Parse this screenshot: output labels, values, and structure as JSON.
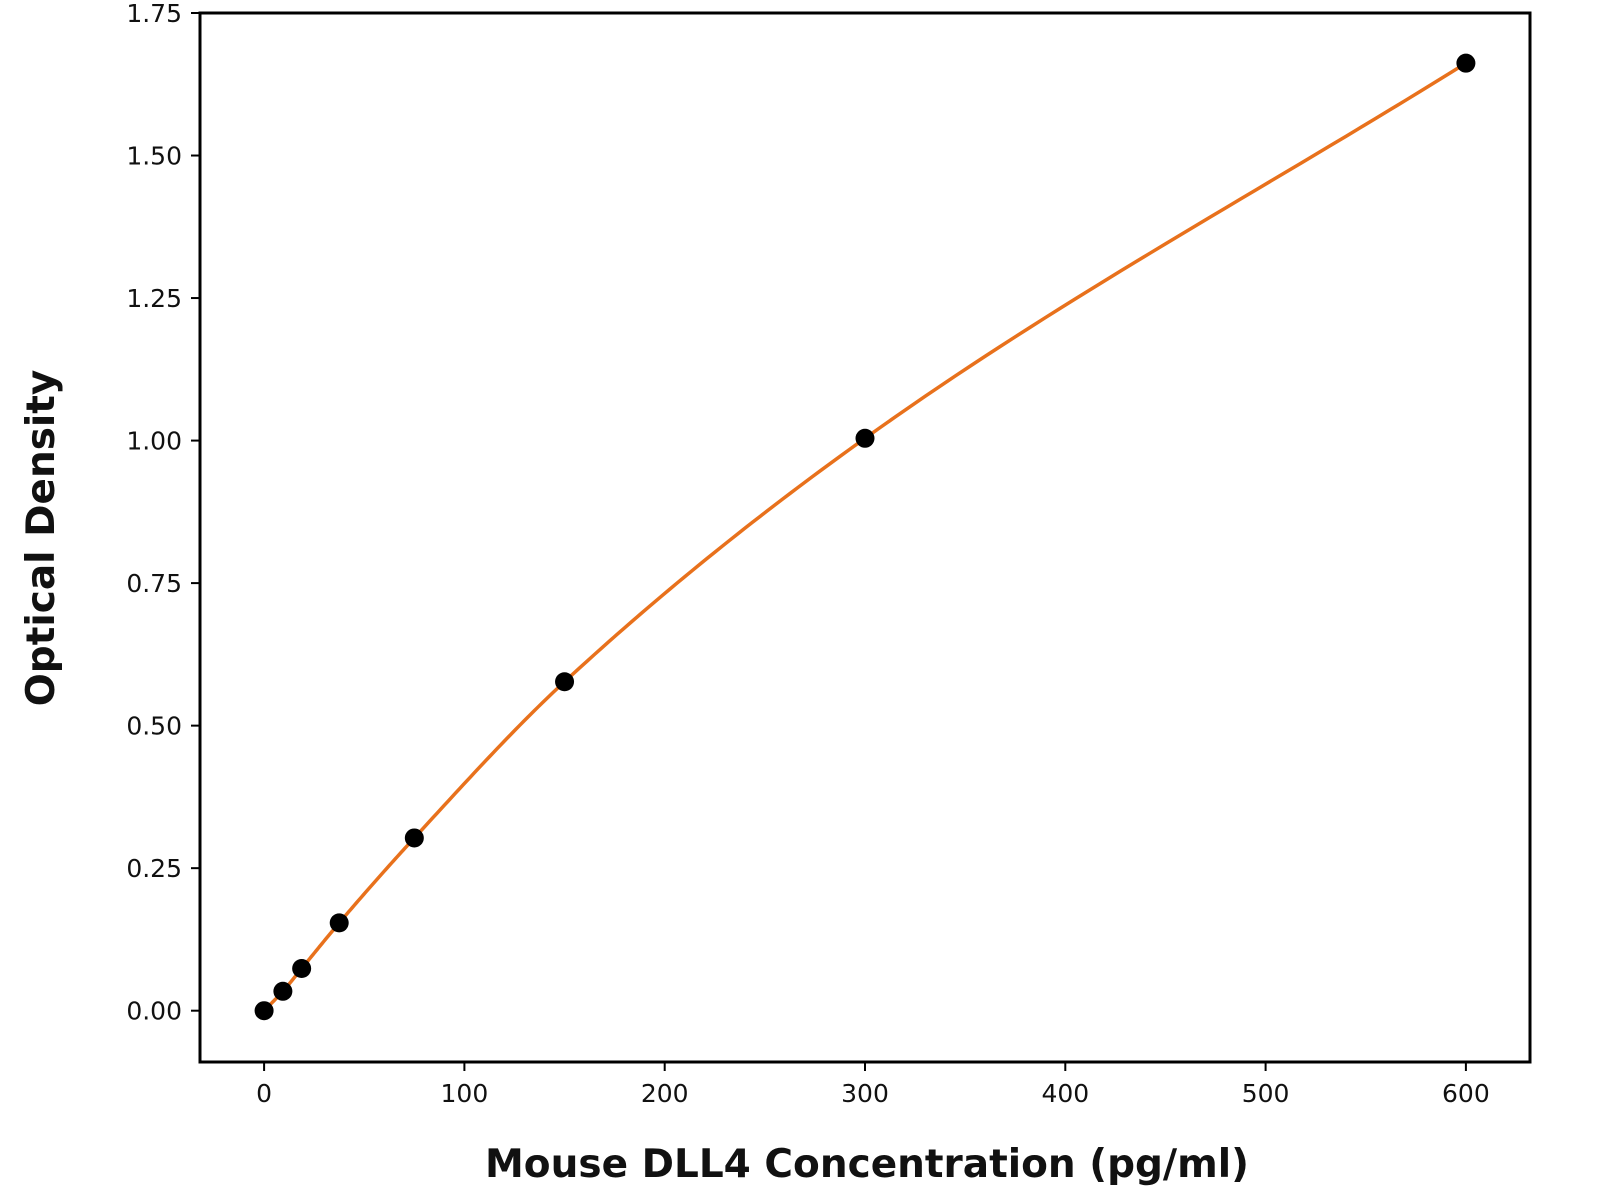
{
  "chart_data": {
    "type": "line",
    "title": "",
    "xlabel": "Mouse DLL4 Concentration (pg/ml)",
    "ylabel": "Optical Density",
    "xlim": [
      -32,
      632
    ],
    "ylim": [
      -0.09,
      1.75
    ],
    "x_ticks": [
      0,
      100,
      200,
      300,
      400,
      500,
      600
    ],
    "y_ticks": [
      0.0,
      0.25,
      0.5,
      0.75,
      1.0,
      1.25,
      1.5,
      1.75
    ],
    "x_tick_labels": [
      "0",
      "100",
      "200",
      "300",
      "400",
      "500",
      "600"
    ],
    "y_tick_labels": [
      "0.00",
      "0.25",
      "0.50",
      "0.75",
      "1.00",
      "1.25",
      "1.50",
      "1.75"
    ],
    "grid": false,
    "series": [
      {
        "kind": "scatter",
        "marker_color": "#000000",
        "points": [
          {
            "x": 0,
            "y": 0.0
          },
          {
            "x": 9.38,
            "y": 0.034
          },
          {
            "x": 18.75,
            "y": 0.074
          },
          {
            "x": 37.5,
            "y": 0.154
          },
          {
            "x": 75,
            "y": 0.303
          },
          {
            "x": 150,
            "y": 0.577
          },
          {
            "x": 300,
            "y": 1.004
          },
          {
            "x": 600,
            "y": 1.662
          }
        ]
      },
      {
        "kind": "fit-line",
        "line_color": "#e8711c"
      }
    ]
  }
}
